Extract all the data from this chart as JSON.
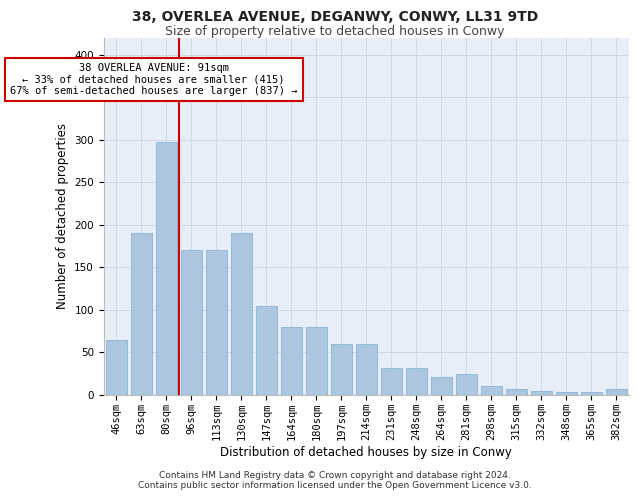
{
  "title_line1": "38, OVERLEA AVENUE, DEGANWY, CONWY, LL31 9TD",
  "title_line2": "Size of property relative to detached houses in Conwy",
  "xlabel": "Distribution of detached houses by size in Conwy",
  "ylabel": "Number of detached properties",
  "footer_line1": "Contains HM Land Registry data © Crown copyright and database right 2024.",
  "footer_line2": "Contains public sector information licensed under the Open Government Licence v3.0.",
  "categories": [
    "46sqm",
    "63sqm",
    "80sqm",
    "96sqm",
    "113sqm",
    "130sqm",
    "147sqm",
    "164sqm",
    "180sqm",
    "197sqm",
    "214sqm",
    "231sqm",
    "248sqm",
    "264sqm",
    "281sqm",
    "298sqm",
    "315sqm",
    "332sqm",
    "348sqm",
    "365sqm",
    "382sqm"
  ],
  "values": [
    65,
    190,
    297,
    170,
    170,
    190,
    105,
    80,
    80,
    60,
    60,
    32,
    32,
    21,
    25,
    10,
    7,
    5,
    4,
    3,
    7
  ],
  "bar_color": "#adc6e0",
  "bar_edge_color": "#7aafd4",
  "grid_color": "#d0d8e8",
  "background_color": "#e8eef8",
  "annotation_text": "38 OVERLEA AVENUE: 91sqm\n← 33% of detached houses are smaller (415)\n67% of semi-detached houses are larger (837) →",
  "annotation_box_color": "#ffffff",
  "annotation_box_edge_color": "#cc0000",
  "vline_x_index": 2.5,
  "vline_color": "#cc0000",
  "ylim": [
    0,
    420
  ],
  "yticks": [
    0,
    50,
    100,
    150,
    200,
    250,
    300,
    350,
    400
  ],
  "title_fontsize": 10,
  "subtitle_fontsize": 9,
  "axis_label_fontsize": 8.5,
  "tick_fontsize": 7.5,
  "annotation_fontsize": 7.5,
  "footer_fontsize": 6.5
}
